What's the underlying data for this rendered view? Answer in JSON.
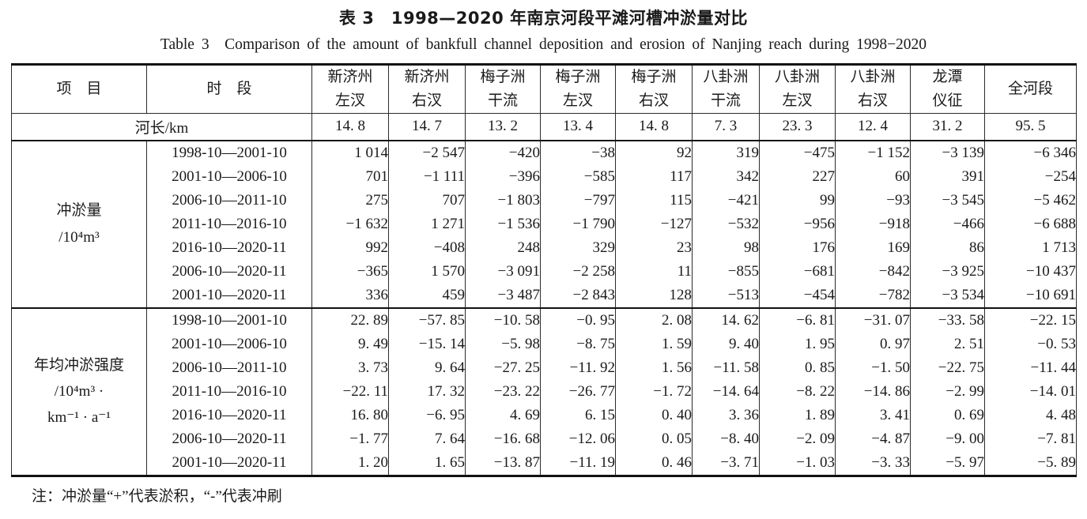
{
  "page": {
    "title_cn": "表 3　1998—2020 年南京河段平滩河槽冲淤量对比",
    "title_en": "Table 3　Comparison of the amount of bankfull channel deposition and erosion of Nanjing reach during 1998−2020",
    "note": "注：冲淤量“+”代表淤积，“-”代表冲刷"
  },
  "table": {
    "header": {
      "item": "项　目",
      "period": "时　段",
      "reaches": [
        "新济州\n左汊",
        "新济州\n右汊",
        "梅子洲\n干流",
        "梅子洲\n左汊",
        "梅子洲\n右汊",
        "八卦洲\n干流",
        "八卦洲\n左汊",
        "八卦洲\n右汊",
        "龙潭\n仪征",
        "全河段"
      ]
    },
    "river_length": {
      "label": "河长/km",
      "values": [
        "14. 8",
        "14. 7",
        "13. 2",
        "13. 4",
        "14. 8",
        "7. 3",
        "23. 3",
        "12. 4",
        "31. 2",
        "95. 5"
      ]
    },
    "sections": [
      {
        "label": "冲淤量\n/10⁴m³",
        "rows": [
          {
            "period": "1998-10—2001-10",
            "values": [
              "1 014",
              "−2 547",
              "−420",
              "−38",
              "92",
              "319",
              "−475",
              "−1 152",
              "−3 139",
              "−6 346"
            ]
          },
          {
            "period": "2001-10—2006-10",
            "values": [
              "701",
              "−1 111",
              "−396",
              "−585",
              "117",
              "342",
              "227",
              "60",
              "391",
              "−254"
            ]
          },
          {
            "period": "2006-10—2011-10",
            "values": [
              "275",
              "707",
              "−1 803",
              "−797",
              "115",
              "−421",
              "99",
              "−93",
              "−3 545",
              "−5 462"
            ]
          },
          {
            "period": "2011-10—2016-10",
            "values": [
              "−1 632",
              "1 271",
              "−1 536",
              "−1 790",
              "−127",
              "−532",
              "−956",
              "−918",
              "−466",
              "−6 688"
            ]
          },
          {
            "period": "2016-10—2020-11",
            "values": [
              "992",
              "−408",
              "248",
              "329",
              "23",
              "98",
              "176",
              "169",
              "86",
              "1 713"
            ]
          },
          {
            "period": "2006-10—2020-11",
            "values": [
              "−365",
              "1 570",
              "−3 091",
              "−2 258",
              "11",
              "−855",
              "−681",
              "−842",
              "−3 925",
              "−10 437"
            ]
          },
          {
            "period": "2001-10—2020-11",
            "values": [
              "336",
              "459",
              "−3 487",
              "−2 843",
              "128",
              "−513",
              "−454",
              "−782",
              "−3 534",
              "−10 691"
            ]
          }
        ]
      },
      {
        "label": "年均冲淤强度\n/10⁴m³ ·\nkm⁻¹ · a⁻¹",
        "rows": [
          {
            "period": "1998-10—2001-10",
            "values": [
              "22. 89",
              "−57. 85",
              "−10. 58",
              "−0. 95",
              "2. 08",
              "14. 62",
              "−6. 81",
              "−31. 07",
              "−33. 58",
              "−22. 15"
            ]
          },
          {
            "period": "2001-10—2006-10",
            "values": [
              "9. 49",
              "−15. 14",
              "−5. 98",
              "−8. 75",
              "1. 59",
              "9. 40",
              "1. 95",
              "0. 97",
              "2. 51",
              "−0. 53"
            ]
          },
          {
            "period": "2006-10—2011-10",
            "values": [
              "3. 73",
              "9. 64",
              "−27. 25",
              "−11. 92",
              "1. 56",
              "−11. 58",
              "0. 85",
              "−1. 50",
              "−22. 75",
              "−11. 44"
            ]
          },
          {
            "period": "2011-10—2016-10",
            "values": [
              "−22. 11",
              "17. 32",
              "−23. 22",
              "−26. 77",
              "−1. 72",
              "−14. 64",
              "−8. 22",
              "−14. 86",
              "−2. 99",
              "−14. 01"
            ]
          },
          {
            "period": "2016-10—2020-11",
            "values": [
              "16. 80",
              "−6. 95",
              "4. 69",
              "6. 15",
              "0. 40",
              "3. 36",
              "1. 89",
              "3. 41",
              "0. 69",
              "4. 48"
            ]
          },
          {
            "period": "2006-10—2020-11",
            "values": [
              "−1. 77",
              "7. 64",
              "−16. 68",
              "−12. 06",
              "0. 05",
              "−8. 40",
              "−2. 09",
              "−4. 87",
              "−9. 00",
              "−7. 81"
            ]
          },
          {
            "period": "2001-10—2020-11",
            "values": [
              "1. 20",
              "1. 65",
              "−13. 87",
              "−11. 19",
              "0. 46",
              "−3. 71",
              "−1. 03",
              "−3. 33",
              "−5. 97",
              "−5. 89"
            ]
          }
        ]
      }
    ]
  }
}
